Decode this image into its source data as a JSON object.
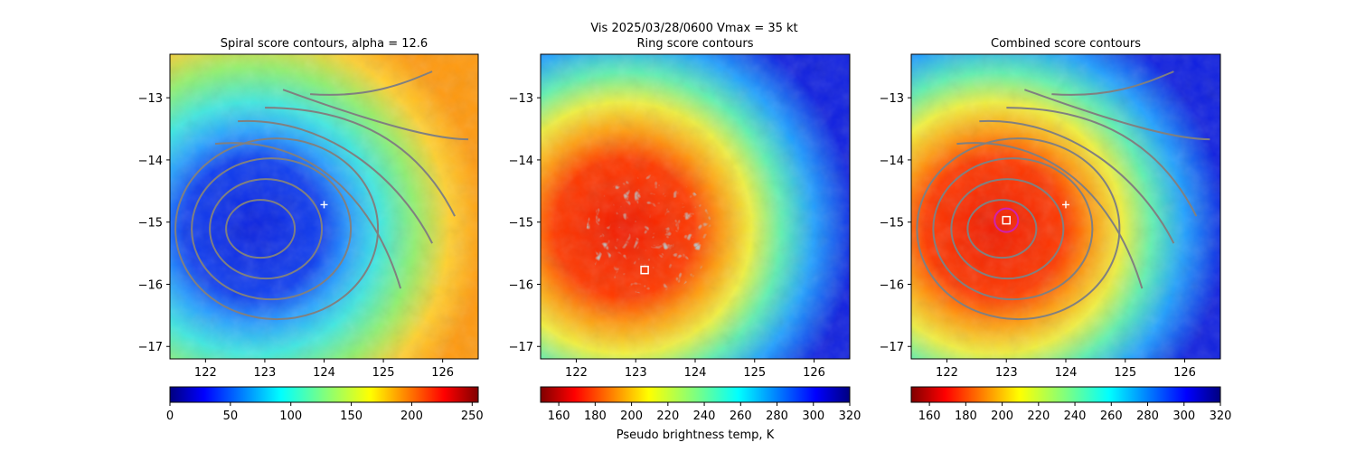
{
  "suptitle_line": "Vis  2025/03/28/0600    Vmax = 35 kt",
  "colorbar_label": "Pseudo brightness temp, K",
  "colors": {
    "contour": "#808080",
    "marker_plus": "#ffffff",
    "marker_square": "#ffffff",
    "ring_circle": "#d020b0"
  },
  "chart_data": [
    {
      "type": "heatmap",
      "title": "Spiral score contours, alpha = 12.6",
      "xlim": [
        121.4,
        126.6
      ],
      "ylim": [
        -17.2,
        -12.3
      ],
      "xticks": [
        122,
        123,
        124,
        125,
        126
      ],
      "xtick_labels": [
        "122",
        "123",
        "124",
        "125",
        "126"
      ],
      "yticks": [
        -13,
        -14,
        -15,
        -16,
        -17
      ],
      "ytick_labels": [
        "−13",
        "−14",
        "−15",
        "−16",
        "−17"
      ],
      "colormap": "jet",
      "colorbar_range": [
        0,
        255
      ],
      "colorbar_ticks": [
        0,
        50,
        100,
        150,
        200,
        250
      ],
      "colorbar_tick_labels": [
        "0",
        "50",
        "100",
        "150",
        "200",
        "250"
      ],
      "storm_center": [
        122.85,
        -15.05
      ],
      "plus_marker": [
        124.0,
        -14.72
      ],
      "square_marker": null,
      "ring_marker": false
    },
    {
      "type": "heatmap",
      "title": "Ring score contours",
      "xlim": [
        121.4,
        126.6
      ],
      "ylim": [
        -17.2,
        -12.3
      ],
      "xticks": [
        122,
        123,
        124,
        125,
        126
      ],
      "xtick_labels": [
        "122",
        "123",
        "124",
        "125",
        "126"
      ],
      "yticks": [
        -13,
        -14,
        -15,
        -16,
        -17
      ],
      "ytick_labels": [
        "−13",
        "−14",
        "−15",
        "−16",
        "−17"
      ],
      "colormap": "jet_r",
      "colorbar_range": [
        150,
        320
      ],
      "colorbar_ticks": [
        160,
        180,
        200,
        220,
        240,
        260,
        280,
        300,
        320
      ],
      "colorbar_tick_labels": [
        "160",
        "180",
        "200",
        "220",
        "240",
        "260",
        "280",
        "300",
        "320"
      ],
      "storm_center": [
        122.85,
        -15.05
      ],
      "plus_marker": null,
      "square_marker": [
        123.15,
        -15.77
      ],
      "ring_marker": false
    },
    {
      "type": "heatmap",
      "title": "Combined score contours",
      "xlim": [
        121.4,
        126.6
      ],
      "ylim": [
        -17.2,
        -12.3
      ],
      "xticks": [
        122,
        123,
        124,
        125,
        126
      ],
      "xtick_labels": [
        "122",
        "123",
        "124",
        "125",
        "126"
      ],
      "yticks": [
        -13,
        -14,
        -15,
        -16,
        -17
      ],
      "ytick_labels": [
        "−13",
        "−14",
        "−15",
        "−16",
        "−17"
      ],
      "colormap": "jet_r",
      "colorbar_range": [
        150,
        320
      ],
      "colorbar_ticks": [
        160,
        180,
        200,
        220,
        240,
        260,
        280,
        300,
        320
      ],
      "colorbar_tick_labels": [
        "160",
        "180",
        "200",
        "220",
        "240",
        "260",
        "280",
        "300",
        "320"
      ],
      "storm_center": [
        122.85,
        -15.05
      ],
      "plus_marker": [
        124.0,
        -14.72
      ],
      "square_marker": [
        123.0,
        -14.97
      ],
      "ring_marker": true
    }
  ]
}
